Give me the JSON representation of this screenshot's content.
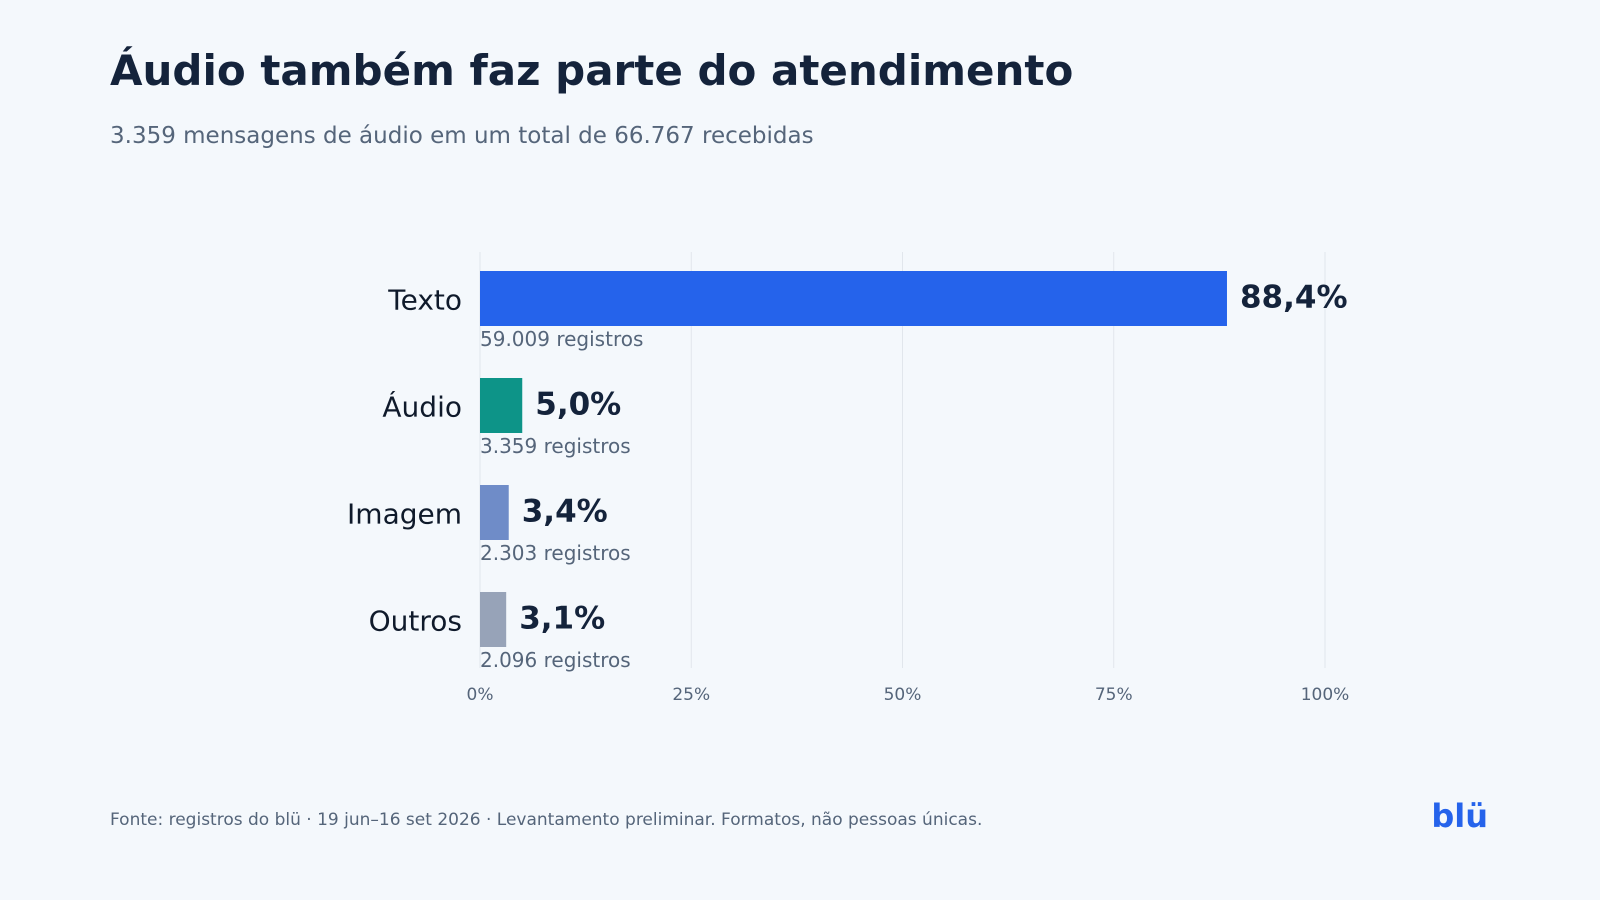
{
  "header": {
    "title": "Áudio também faz parte do atendimento",
    "subtitle": "3.359 mensagens de áudio em um total de 66.767 recebidas"
  },
  "footer": {
    "source": "Fonte: registros do blü · 19 jun–16 set 2026 · Levantamento preliminar. Formatos, não pessoas únicas.",
    "brand": "blü"
  },
  "colors": {
    "background": "#f4f8fc",
    "text_dark": "#14233b",
    "text_muted": "#55657a",
    "grid": "#e1e6ec",
    "brand": "#2563eb"
  },
  "chart_data": {
    "type": "bar",
    "orientation": "horizontal",
    "categories": [
      "Texto",
      "Áudio",
      "Imagem",
      "Outros"
    ],
    "values": [
      88.4,
      5.0,
      3.4,
      3.1
    ],
    "value_labels": [
      "88,4%",
      "5,0%",
      "3,4%",
      "3,1%"
    ],
    "sublabels": [
      "59.009 registros",
      "3.359 registros",
      "2.303 registros",
      "2.096 registros"
    ],
    "colors": [
      "#2563eb",
      "#0d9488",
      "#6f8cc8",
      "#97a3b8"
    ],
    "xlim": [
      0,
      100
    ],
    "xticks": [
      0,
      25,
      50,
      75,
      100
    ],
    "xtick_labels": [
      "0%",
      "25%",
      "50%",
      "75%",
      "100%"
    ],
    "grid": "vertical",
    "legend": "none"
  }
}
